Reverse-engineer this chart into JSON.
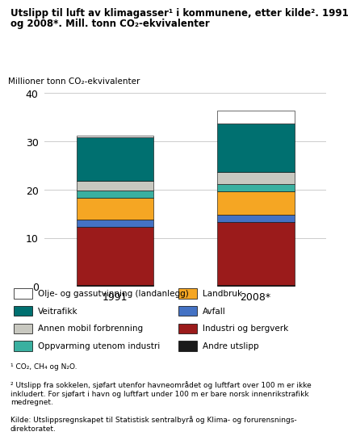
{
  "title_line1": "Utslipp til luft av klimagasser¹ i kommunene, etter kilde². 1991",
  "title_line2": "og 2008*. Mill. tonn CO₂-ekvivalenter",
  "ylabel": "Millioner tonn CO₂-ekvivalenter",
  "years": [
    "1991",
    "2008*"
  ],
  "ylim": [
    0,
    40
  ],
  "yticks": [
    0,
    10,
    20,
    30,
    40
  ],
  "categories": [
    "Andre utslipp",
    "Industri og bergverk",
    "Avfall",
    "Landbruk",
    "Oppvarming utenom industri",
    "Annen mobil forbrenning",
    "Veitrafikk",
    "Olje- og gassutvinning (landanlegg)"
  ],
  "colors": [
    "#1a1a1a",
    "#9b1b1b",
    "#4472c4",
    "#f5a623",
    "#3ab0a0",
    "#c8c8c0",
    "#007070",
    "#ffffff"
  ],
  "values_1991": [
    0.3,
    12.0,
    1.5,
    4.5,
    1.5,
    2.0,
    9.0,
    0.3
  ],
  "values_2008": [
    0.3,
    13.0,
    1.5,
    4.8,
    1.5,
    2.5,
    10.0,
    2.8
  ],
  "legend_labels": [
    "Olje- og gassutvinning (landanlegg)",
    "Veitrafikk",
    "Annen mobil forbrenning",
    "Oppvarming utenom industri",
    "Landbruk",
    "Avfall",
    "Industri og bergverk",
    "Andre utslipp"
  ],
  "legend_colors": [
    "#ffffff",
    "#007070",
    "#c8c8c0",
    "#3ab0a0",
    "#f5a623",
    "#4472c4",
    "#9b1b1b",
    "#1a1a1a"
  ],
  "footnote1": "¹ CO₂, CH₄ og N₂O.",
  "footnote2": "² Utslipp fra sokkelen, sjøfart utenfor havneområdet og luftfart over 100 m er ikke\ninkludert. For sjøfart i havn og luftfart under 100 m er bare norsk innenrikstrafikk\nmedregnet.",
  "footnote3": "Kilde: Utslippsregnskapet til Statistisk sentralbyrå og Klima- og forurensnings-\ndirektoratet.",
  "bar_width": 0.55,
  "background_color": "#ffffff"
}
